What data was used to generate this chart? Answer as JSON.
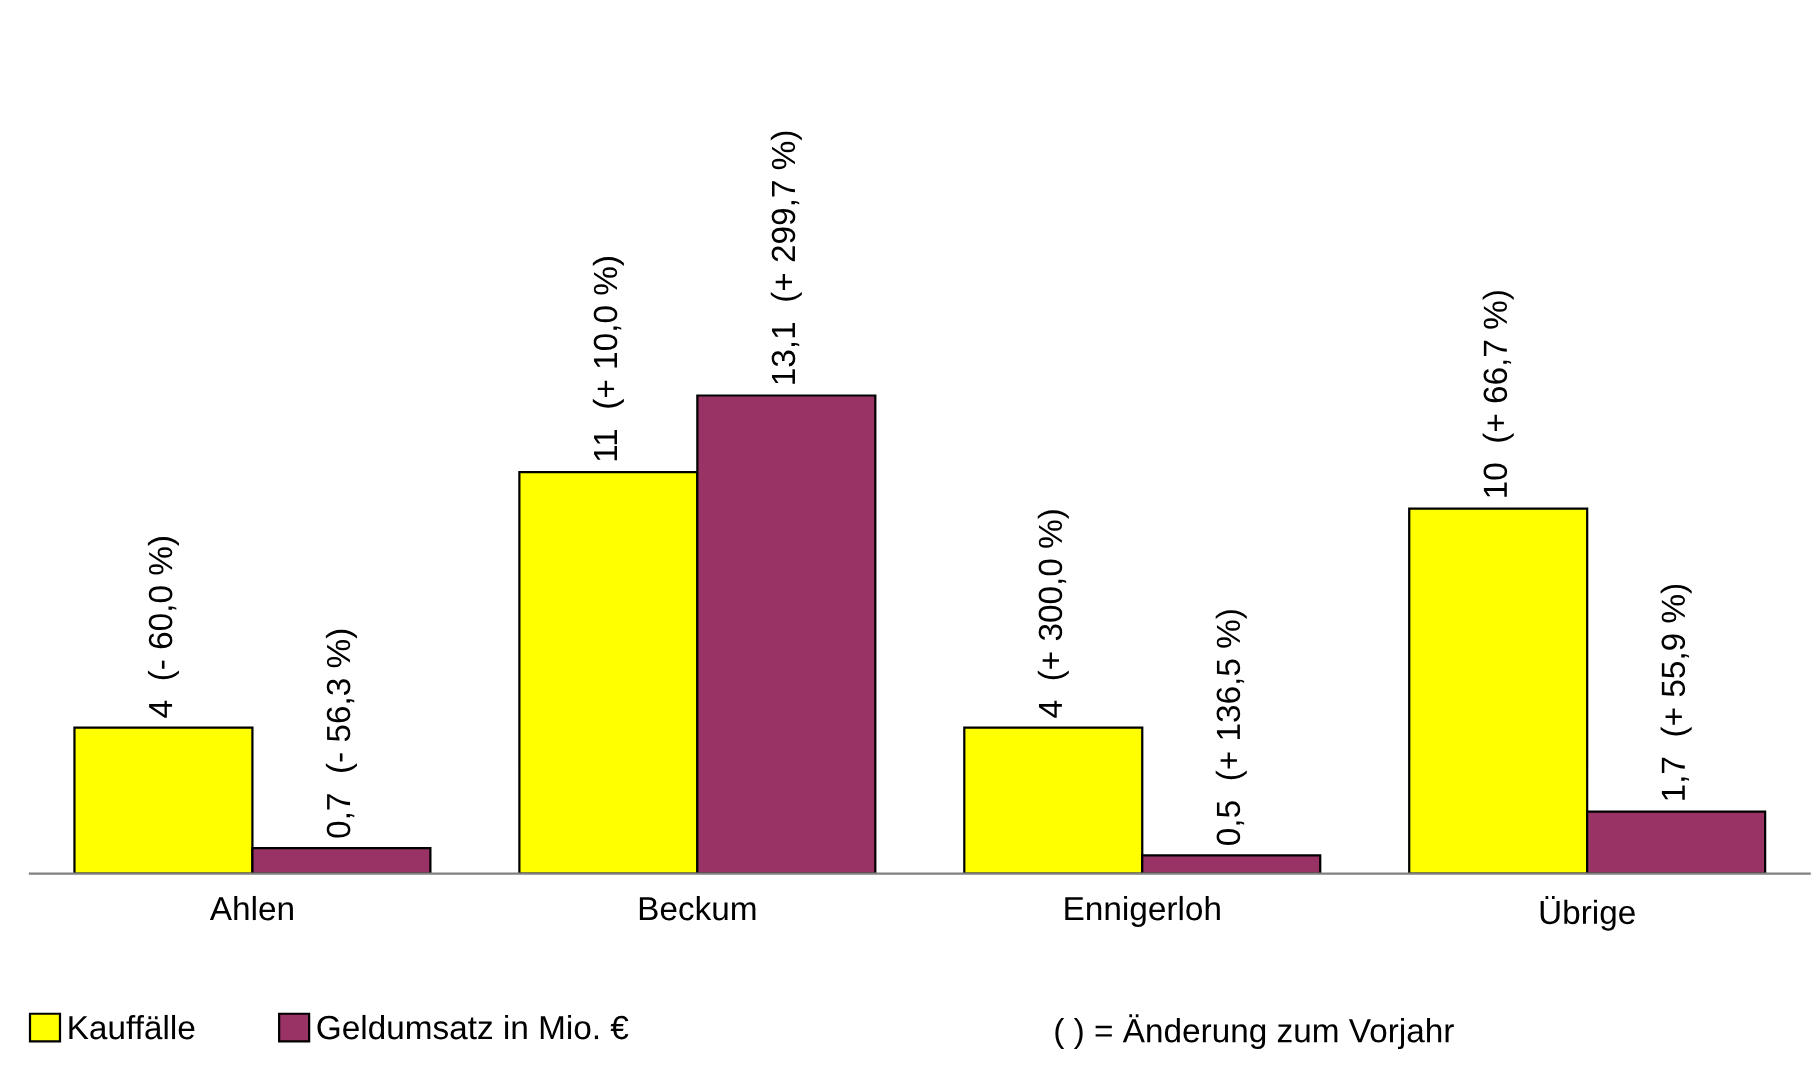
{
  "chart_data": {
    "type": "bar",
    "categories": [
      "Ahlen",
      "Beckum",
      "Ennigerloh",
      "Übrige"
    ],
    "series": [
      {
        "name": "Kauffälle",
        "color": "#ffff00",
        "values": [
          4,
          11,
          4,
          10
        ],
        "value_labels": [
          "4  (- 60,0 %)",
          "11  (+ 10,0 %)",
          "4  (+ 300,0 %)",
          "10  (+ 66,7 %)"
        ]
      },
      {
        "name": "Geldumsatz in Mio. €",
        "color": "#993366",
        "values": [
          0.7,
          13.1,
          0.5,
          1.7
        ],
        "value_labels": [
          "0,7  (- 56,3 %)",
          "13,1  (+ 299,7 %)",
          "0,5  (+ 136,5 %)",
          "1,7  (+ 55,9 %)"
        ]
      }
    ],
    "legend": "bottom left",
    "grid": false,
    "annotations": [
      "( ) = Änderung zum Vorjahr"
    ]
  }
}
